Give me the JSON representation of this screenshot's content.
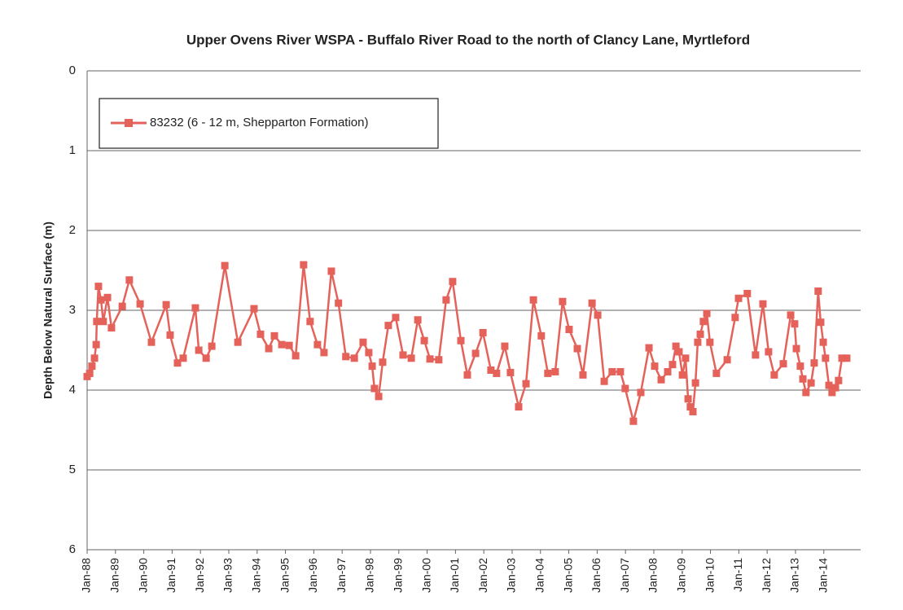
{
  "chart_data": {
    "type": "line",
    "title": "Upper Ovens River WSPA - Buffalo River Road to the north of Clancy Lane, Myrtleford",
    "y_label": "Depth Below Natural Surface (m)",
    "y_inverted": true,
    "ylim": [
      0,
      6
    ],
    "yticks": [
      0,
      1,
      2,
      3,
      4,
      5,
      6
    ],
    "xlim": [
      1988,
      2015.3
    ],
    "xticks": [
      {
        "value": 1988,
        "label": "Jan-88"
      },
      {
        "value": 1989,
        "label": "Jan-89"
      },
      {
        "value": 1990,
        "label": "Jan-90"
      },
      {
        "value": 1991,
        "label": "Jan-91"
      },
      {
        "value": 1992,
        "label": "Jan-92"
      },
      {
        "value": 1993,
        "label": "Jan-93"
      },
      {
        "value": 1994,
        "label": "Jan-94"
      },
      {
        "value": 1995,
        "label": "Jan-95"
      },
      {
        "value": 1996,
        "label": "Jan-96"
      },
      {
        "value": 1997,
        "label": "Jan-97"
      },
      {
        "value": 1998,
        "label": "Jan-98"
      },
      {
        "value": 1999,
        "label": "Jan-99"
      },
      {
        "value": 2000,
        "label": "Jan-00"
      },
      {
        "value": 2001,
        "label": "Jan-01"
      },
      {
        "value": 2002,
        "label": "Jan-02"
      },
      {
        "value": 2003,
        "label": "Jan-03"
      },
      {
        "value": 2004,
        "label": "Jan-04"
      },
      {
        "value": 2005,
        "label": "Jan-05"
      },
      {
        "value": 2006,
        "label": "Jan-06"
      },
      {
        "value": 2007,
        "label": "Jan-07"
      },
      {
        "value": 2008,
        "label": "Jan-08"
      },
      {
        "value": 2009,
        "label": "Jan-09"
      },
      {
        "value": 2010,
        "label": "Jan-10"
      },
      {
        "value": 2011,
        "label": "Jan-11"
      },
      {
        "value": 2012,
        "label": "Jan-12"
      },
      {
        "value": 2013,
        "label": "Jan-13"
      },
      {
        "value": 2014,
        "label": "Jan-14"
      }
    ],
    "grid": true,
    "legend": "top-left",
    "series": [
      {
        "name": "83232 (6 - 12 m, Shepparton Formation)",
        "color": "#e4625a",
        "x": [
          1988.0,
          1988.09,
          1988.17,
          1988.26,
          1988.32,
          1988.34,
          1988.4,
          1988.49,
          1988.57,
          1988.72,
          1988.86,
          1989.24,
          1989.49,
          1989.87,
          1990.27,
          1990.79,
          1990.93,
          1991.19,
          1991.39,
          1991.82,
          1991.94,
          1992.2,
          1992.4,
          1992.86,
          1993.32,
          1993.89,
          1994.12,
          1994.41,
          1994.61,
          1994.87,
          1995.13,
          1995.36,
          1995.64,
          1995.87,
          1996.13,
          1996.36,
          1996.62,
          1996.87,
          1997.13,
          1997.43,
          1997.74,
          1997.94,
          1998.06,
          1998.14,
          1998.29,
          1998.43,
          1998.63,
          1998.89,
          1999.15,
          1999.44,
          1999.67,
          1999.9,
          2000.1,
          2000.41,
          2000.67,
          2000.9,
          2001.19,
          2001.42,
          2001.71,
          2001.97,
          2002.25,
          2002.45,
          2002.74,
          2002.94,
          2003.23,
          2003.49,
          2003.75,
          2004.03,
          2004.26,
          2004.52,
          2004.78,
          2005.01,
          2005.3,
          2005.5,
          2005.82,
          2006.02,
          2006.25,
          2006.53,
          2006.82,
          2006.99,
          2007.28,
          2007.54,
          2007.83,
          2008.03,
          2008.26,
          2008.49,
          2008.66,
          2008.78,
          2008.89,
          2009.01,
          2009.12,
          2009.21,
          2009.29,
          2009.38,
          2009.47,
          2009.55,
          2009.64,
          2009.75,
          2009.87,
          2009.98,
          2010.21,
          2010.59,
          2010.87,
          2010.99,
          2011.3,
          2011.59,
          2011.85,
          2012.05,
          2012.25,
          2012.57,
          2012.83,
          2012.97,
          2013.03,
          2013.17,
          2013.26,
          2013.37,
          2013.55,
          2013.66,
          2013.8,
          2013.89,
          2013.98,
          2014.06,
          2014.18,
          2014.29,
          2014.41,
          2014.52,
          2014.64,
          2014.81
        ],
        "values": [
          3.83,
          3.79,
          3.7,
          3.6,
          3.43,
          3.14,
          2.7,
          2.87,
          3.14,
          2.84,
          3.22,
          2.95,
          2.62,
          2.92,
          3.4,
          2.93,
          3.31,
          3.66,
          3.6,
          2.97,
          3.5,
          3.6,
          3.45,
          2.44,
          3.4,
          2.98,
          3.3,
          3.48,
          3.32,
          3.43,
          3.44,
          3.57,
          2.43,
          3.14,
          3.43,
          3.53,
          2.51,
          2.91,
          3.58,
          3.6,
          3.4,
          3.53,
          3.7,
          3.98,
          4.08,
          3.65,
          3.19,
          3.09,
          3.56,
          3.6,
          3.12,
          3.38,
          3.61,
          3.62,
          2.87,
          2.64,
          3.38,
          3.81,
          3.54,
          3.28,
          3.75,
          3.79,
          3.45,
          3.78,
          4.21,
          3.92,
          2.87,
          3.32,
          3.79,
          3.77,
          2.89,
          3.24,
          3.48,
          3.81,
          2.91,
          3.06,
          3.89,
          3.77,
          3.77,
          3.98,
          4.39,
          4.03,
          3.47,
          3.7,
          3.87,
          3.77,
          3.68,
          3.45,
          3.52,
          3.81,
          3.6,
          4.11,
          4.21,
          4.27,
          3.91,
          3.4,
          3.3,
          3.14,
          3.04,
          3.4,
          3.79,
          3.62,
          3.09,
          2.85,
          2.79,
          3.56,
          2.92,
          3.52,
          3.81,
          3.67,
          3.06,
          3.17,
          3.48,
          3.7,
          3.86,
          4.03,
          3.91,
          3.66,
          2.76,
          3.15,
          3.4,
          3.6,
          3.94,
          4.03,
          3.97,
          3.88,
          3.6,
          3.6
        ]
      }
    ]
  }
}
